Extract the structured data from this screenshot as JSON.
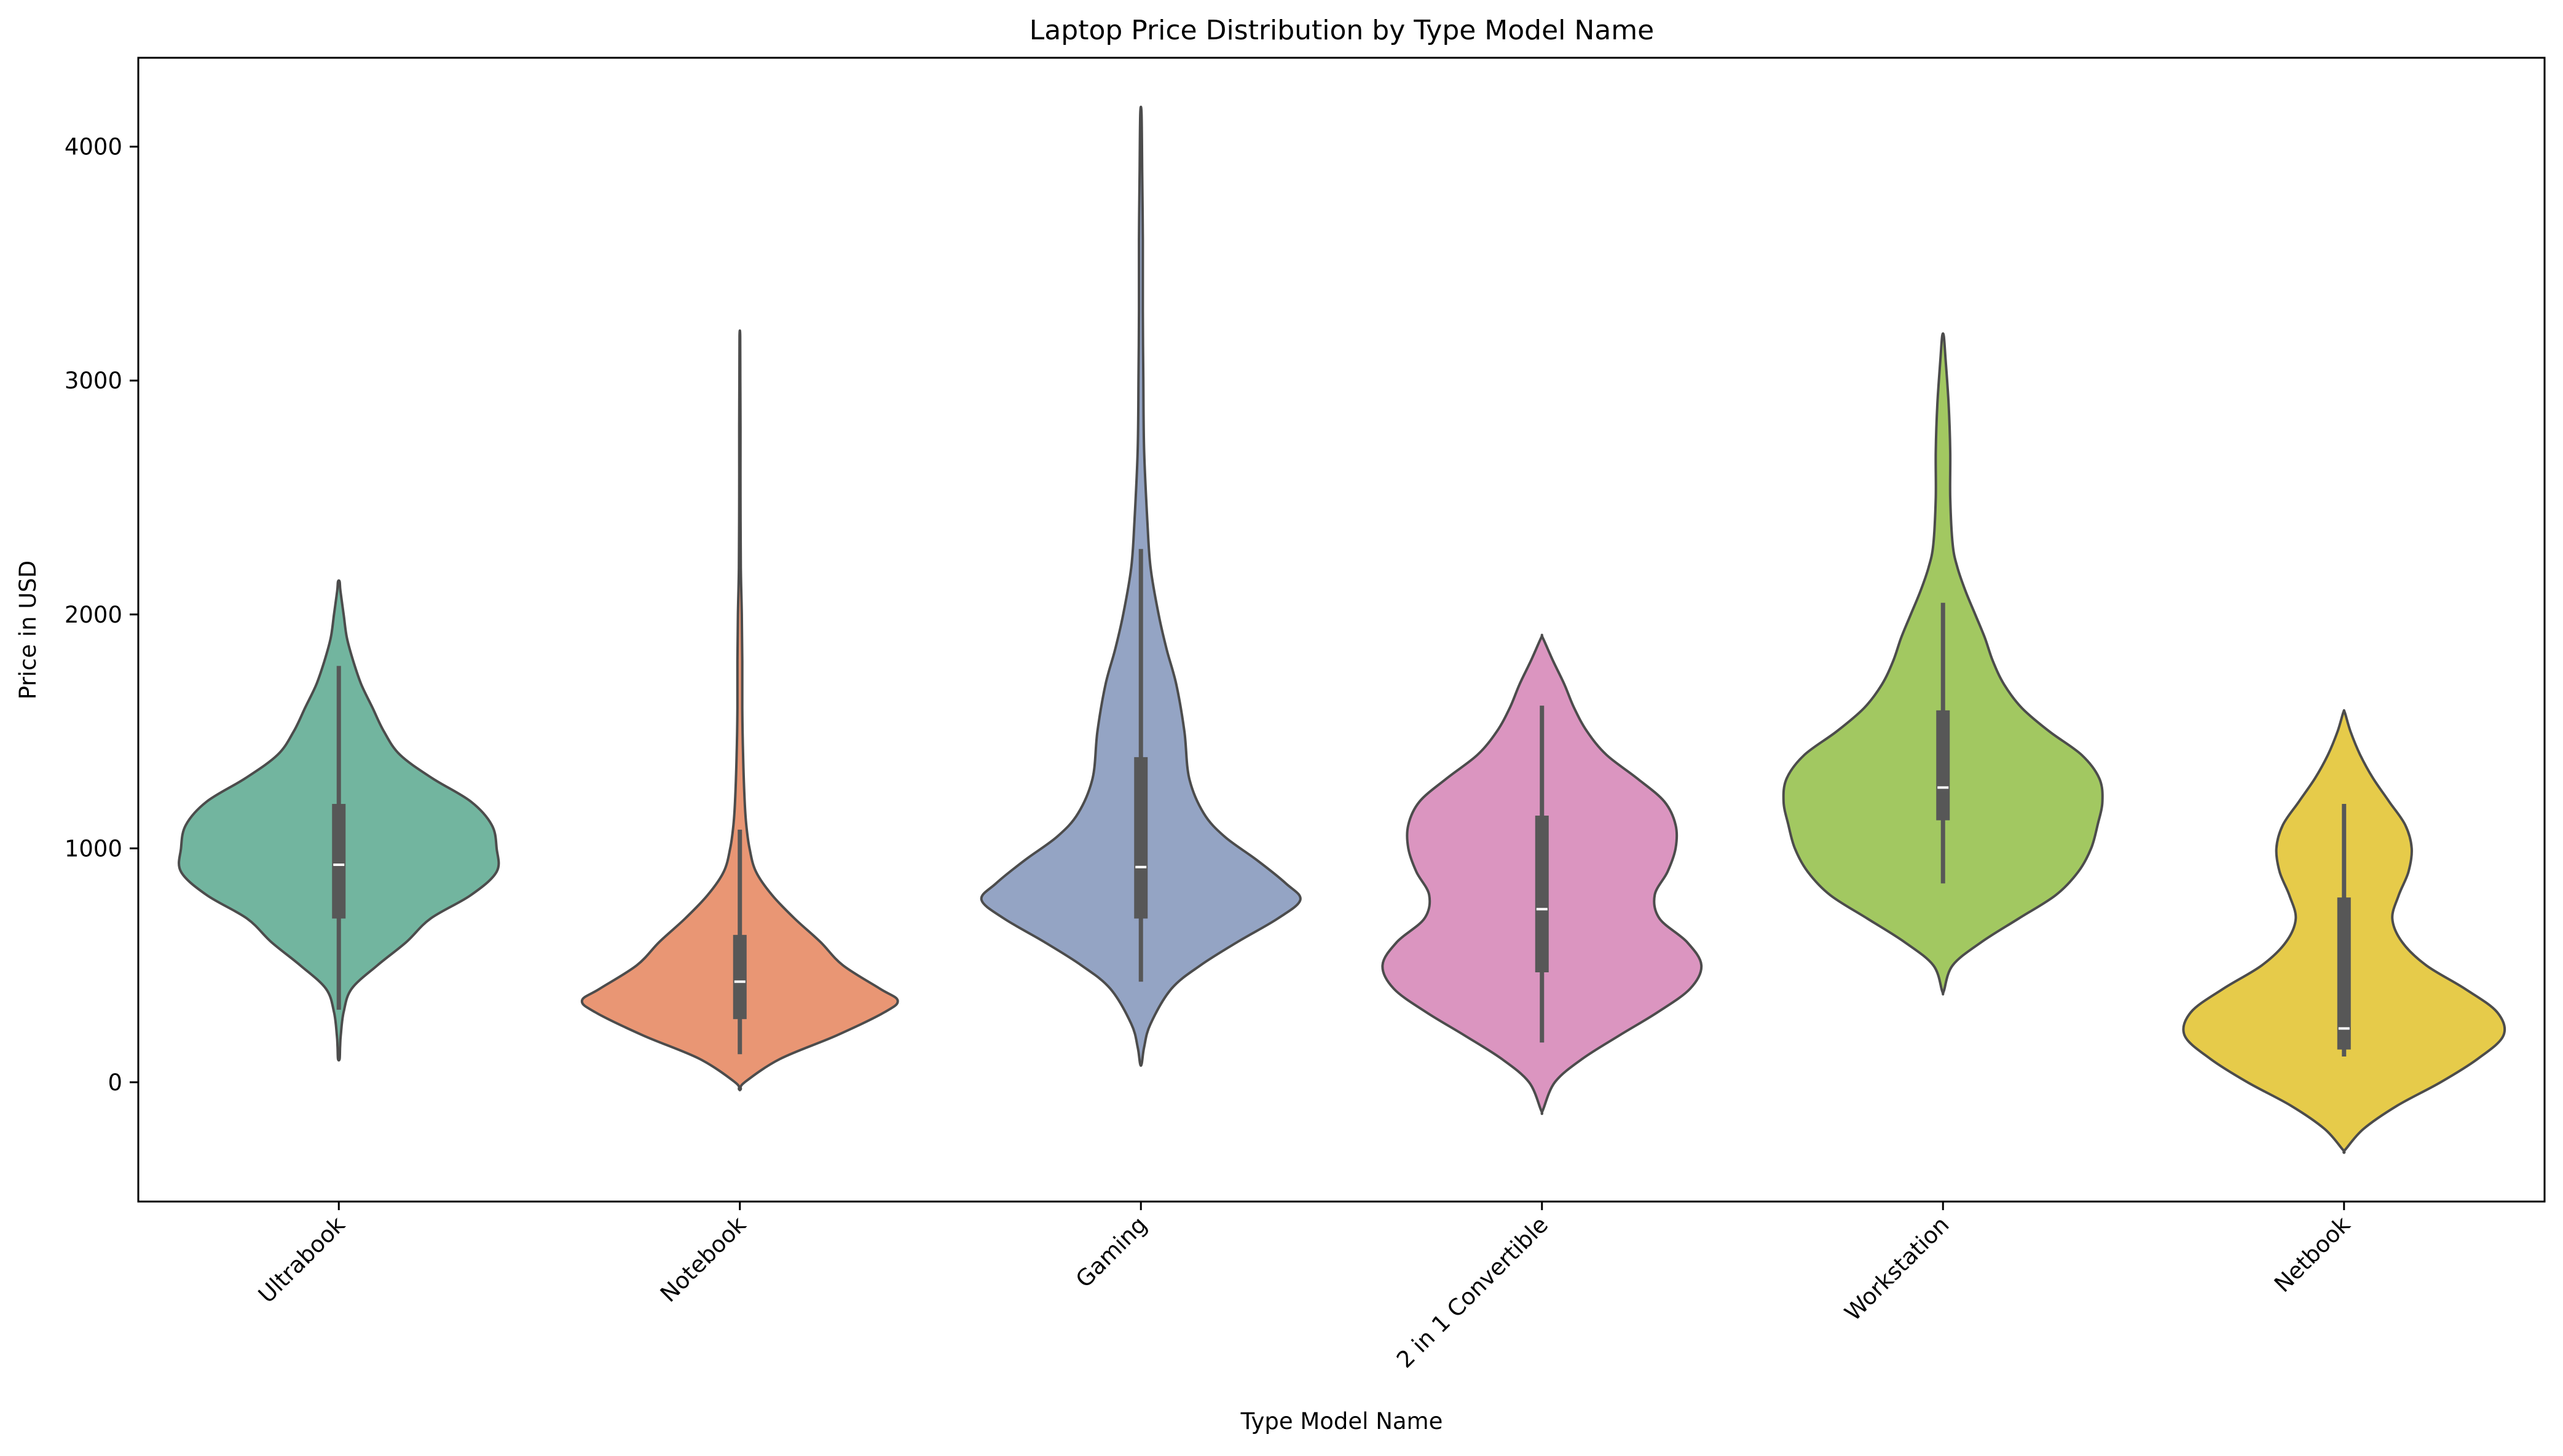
{
  "chart_data": {
    "type": "violin",
    "title": "Laptop Price Distribution by Type Model Name",
    "xlabel": "Type Model Name",
    "ylabel": "Price in USD",
    "ylim": [
      -510,
      4380
    ],
    "yticks": [
      0,
      1000,
      2000,
      3000,
      4000
    ],
    "grid": false,
    "legend": "none",
    "categories": [
      "Ultrabook",
      "Notebook",
      "Gaming",
      "2 in 1 Convertible",
      "Workstation",
      "Netbook"
    ],
    "colors": [
      "#72b59f",
      "#e99674",
      "#94a4c4",
      "#db95c0",
      "#a2c861",
      "#e6cb4a"
    ],
    "outline_color": "#4c4c4c",
    "box_color": "#575757",
    "median_color": "#ffffff",
    "series": [
      {
        "category": "Ultrabook",
        "range": [
          100,
          2140
        ],
        "whiskers": [
          310,
          1780
        ],
        "q1": 700,
        "median": 930,
        "q3": 1190,
        "profile": [
          [
            100,
            0.005
          ],
          [
            150,
            0.008
          ],
          [
            200,
            0.012
          ],
          [
            300,
            0.03
          ],
          [
            400,
            0.08
          ],
          [
            500,
            0.24
          ],
          [
            600,
            0.42
          ],
          [
            700,
            0.57
          ],
          [
            800,
            0.82
          ],
          [
            900,
            0.98
          ],
          [
            1000,
            0.98
          ],
          [
            1100,
            0.95
          ],
          [
            1200,
            0.82
          ],
          [
            1300,
            0.58
          ],
          [
            1400,
            0.38
          ],
          [
            1500,
            0.28
          ],
          [
            1600,
            0.21
          ],
          [
            1700,
            0.14
          ],
          [
            1800,
            0.09
          ],
          [
            1900,
            0.05
          ],
          [
            2000,
            0.03
          ],
          [
            2100,
            0.01
          ],
          [
            2140,
            0.005
          ]
        ]
      },
      {
        "category": "Notebook",
        "range": [
          -30,
          3190
        ],
        "whiskers": [
          120,
          1080
        ],
        "q1": 270,
        "median": 430,
        "q3": 630,
        "profile": [
          [
            -30,
            0.005
          ],
          [
            0,
            0.03
          ],
          [
            100,
            0.25
          ],
          [
            200,
            0.6
          ],
          [
            300,
            0.9
          ],
          [
            350,
            0.98
          ],
          [
            400,
            0.87
          ],
          [
            500,
            0.64
          ],
          [
            600,
            0.5
          ],
          [
            700,
            0.34
          ],
          [
            800,
            0.2
          ],
          [
            900,
            0.1
          ],
          [
            1000,
            0.06
          ],
          [
            1100,
            0.04
          ],
          [
            1200,
            0.03
          ],
          [
            1400,
            0.02
          ],
          [
            1600,
            0.015
          ],
          [
            1800,
            0.015
          ],
          [
            2000,
            0.012
          ],
          [
            2200,
            0.006
          ],
          [
            2500,
            0.004
          ],
          [
            2800,
            0.004
          ],
          [
            3000,
            0.003
          ],
          [
            3190,
            0.002
          ]
        ]
      },
      {
        "category": "Gaming",
        "range": [
          80,
          4140
        ],
        "whiskers": [
          430,
          2280
        ],
        "q1": 700,
        "median": 920,
        "q3": 1390,
        "profile": [
          [
            80,
            0.005
          ],
          [
            150,
            0.02
          ],
          [
            250,
            0.06
          ],
          [
            400,
            0.19
          ],
          [
            500,
            0.37
          ],
          [
            600,
            0.6
          ],
          [
            700,
            0.85
          ],
          [
            780,
            0.99
          ],
          [
            850,
            0.9
          ],
          [
            950,
            0.72
          ],
          [
            1050,
            0.52
          ],
          [
            1150,
            0.39
          ],
          [
            1300,
            0.3
          ],
          [
            1500,
            0.27
          ],
          [
            1700,
            0.22
          ],
          [
            1850,
            0.16
          ],
          [
            2000,
            0.11
          ],
          [
            2200,
            0.06
          ],
          [
            2400,
            0.04
          ],
          [
            2700,
            0.02
          ],
          [
            3000,
            0.015
          ],
          [
            3300,
            0.012
          ],
          [
            3600,
            0.012
          ],
          [
            3900,
            0.008
          ],
          [
            4140,
            0.004
          ]
        ]
      },
      {
        "category": "2 in 1 Convertible",
        "range": [
          -120,
          1900
        ],
        "whiskers": [
          170,
          1610
        ],
        "q1": 470,
        "median": 740,
        "q3": 1140,
        "profile": [
          [
            -120,
            0.005
          ],
          [
            0,
            0.08
          ],
          [
            100,
            0.25
          ],
          [
            200,
            0.48
          ],
          [
            300,
            0.72
          ],
          [
            400,
            0.92
          ],
          [
            500,
            0.99
          ],
          [
            600,
            0.9
          ],
          [
            700,
            0.73
          ],
          [
            800,
            0.7
          ],
          [
            900,
            0.78
          ],
          [
            1000,
            0.83
          ],
          [
            1100,
            0.83
          ],
          [
            1200,
            0.76
          ],
          [
            1300,
            0.59
          ],
          [
            1400,
            0.4
          ],
          [
            1500,
            0.28
          ],
          [
            1600,
            0.2
          ],
          [
            1700,
            0.14
          ],
          [
            1800,
            0.07
          ],
          [
            1900,
            0.005
          ]
        ]
      },
      {
        "category": "Workstation",
        "range": [
          390,
          3190
        ],
        "whiskers": [
          850,
          2050
        ],
        "q1": 1120,
        "median": 1260,
        "q3": 1590,
        "profile": [
          [
            390,
            0.005
          ],
          [
            500,
            0.06
          ],
          [
            600,
            0.24
          ],
          [
            700,
            0.47
          ],
          [
            800,
            0.7
          ],
          [
            900,
            0.84
          ],
          [
            1000,
            0.92
          ],
          [
            1100,
            0.96
          ],
          [
            1200,
            0.99
          ],
          [
            1300,
            0.97
          ],
          [
            1400,
            0.86
          ],
          [
            1500,
            0.66
          ],
          [
            1600,
            0.49
          ],
          [
            1700,
            0.38
          ],
          [
            1800,
            0.31
          ],
          [
            1900,
            0.26
          ],
          [
            2000,
            0.2
          ],
          [
            2100,
            0.14
          ],
          [
            2200,
            0.09
          ],
          [
            2300,
            0.06
          ],
          [
            2500,
            0.045
          ],
          [
            2700,
            0.045
          ],
          [
            2900,
            0.035
          ],
          [
            3100,
            0.015
          ],
          [
            3190,
            0.005
          ]
        ]
      },
      {
        "category": "Netbook",
        "range": [
          -290,
          1580
        ],
        "whiskers": [
          110,
          1190
        ],
        "q1": 140,
        "median": 230,
        "q3": 790,
        "profile": [
          [
            -290,
            0.005
          ],
          [
            -200,
            0.12
          ],
          [
            -100,
            0.33
          ],
          [
            0,
            0.6
          ],
          [
            100,
            0.83
          ],
          [
            200,
            0.99
          ],
          [
            300,
            0.95
          ],
          [
            400,
            0.75
          ],
          [
            500,
            0.51
          ],
          [
            600,
            0.36
          ],
          [
            700,
            0.3
          ],
          [
            800,
            0.34
          ],
          [
            900,
            0.4
          ],
          [
            1000,
            0.42
          ],
          [
            1100,
            0.38
          ],
          [
            1200,
            0.28
          ],
          [
            1300,
            0.18
          ],
          [
            1400,
            0.1
          ],
          [
            1500,
            0.04
          ],
          [
            1580,
            0.005
          ]
        ]
      }
    ]
  }
}
